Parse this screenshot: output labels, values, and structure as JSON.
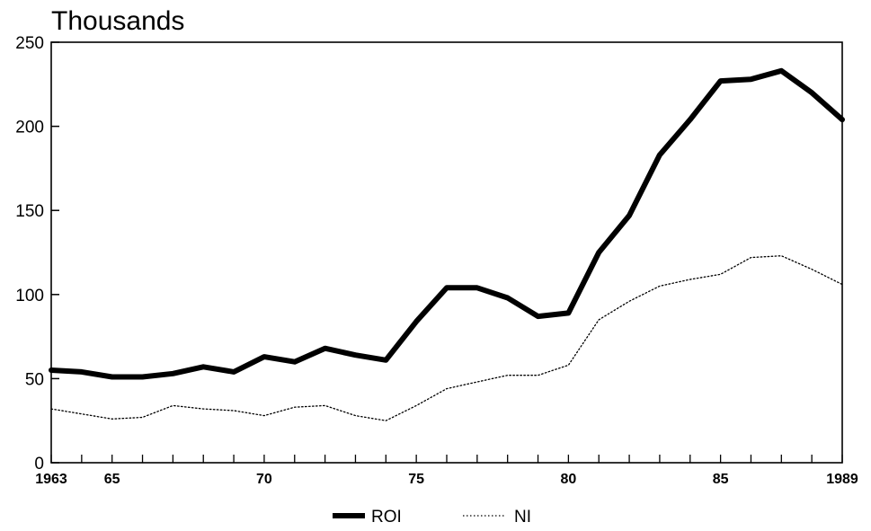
{
  "chart_data": {
    "type": "line",
    "title": "",
    "xlabel": "",
    "ylabel": "Thousands",
    "xlim": [
      1963,
      1989
    ],
    "ylim": [
      0,
      250
    ],
    "grid": false,
    "legend_position": "bottom",
    "y_ticks": [
      "0",
      "50",
      "100",
      "150",
      "200",
      "250"
    ],
    "x_ticks": [
      {
        "value": 1963,
        "label": "1963"
      },
      {
        "value": 1965,
        "label": "65"
      },
      {
        "value": 1970,
        "label": "70"
      },
      {
        "value": 1975,
        "label": "75"
      },
      {
        "value": 1980,
        "label": "80"
      },
      {
        "value": 1985,
        "label": "85"
      },
      {
        "value": 1989,
        "label": "1989"
      }
    ],
    "x": [
      1963,
      1964,
      1965,
      1966,
      1967,
      1968,
      1969,
      1970,
      1971,
      1972,
      1973,
      1974,
      1975,
      1976,
      1977,
      1978,
      1979,
      1980,
      1981,
      1982,
      1983,
      1984,
      1985,
      1986,
      1987,
      1988,
      1989
    ],
    "series": [
      {
        "name": "ROI",
        "style": "thick-solid",
        "color": "#000000",
        "values": [
          55,
          54,
          51,
          51,
          53,
          57,
          54,
          63,
          60,
          68,
          64,
          61,
          84,
          104,
          104,
          98,
          87,
          89,
          125,
          147,
          183,
          204,
          227,
          228,
          233,
          220,
          204
        ]
      },
      {
        "name": "NI",
        "style": "dotted",
        "color": "#000000",
        "values": [
          32,
          29,
          26,
          27,
          34,
          32,
          31,
          28,
          33,
          34,
          28,
          25,
          34,
          44,
          48,
          52,
          52,
          58,
          85,
          96,
          105,
          109,
          112,
          122,
          123,
          115,
          106
        ]
      }
    ]
  }
}
